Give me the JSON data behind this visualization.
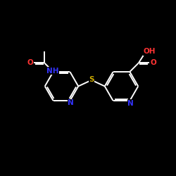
{
  "background_color": "#000000",
  "bond_color": "#ffffff",
  "atom_color_N": "#3333ff",
  "atom_color_O": "#ff3333",
  "atom_color_S": "#ccaa00",
  "figsize": [
    2.5,
    2.5
  ],
  "dpi": 100,
  "xlim": [
    0,
    10
  ],
  "ylim": [
    0,
    10
  ],
  "bond_lw": 1.4,
  "font_size": 7.5
}
